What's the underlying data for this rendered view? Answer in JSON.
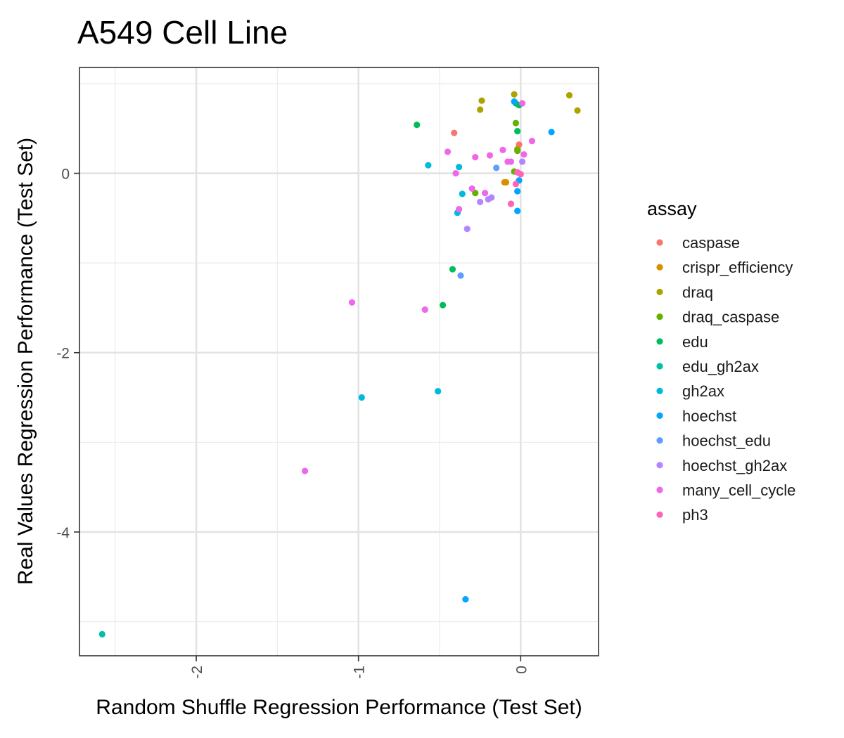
{
  "chart_data": {
    "type": "scatter",
    "title": "A549 Cell Line",
    "xlabel": "Random Shuffle Regression Performance (Test Set)",
    "ylabel": "Real Values Regression Performance (Test Set)",
    "xlim": [
      -2.72,
      0.48
    ],
    "ylim": [
      -5.38,
      1.18
    ],
    "x_ticks": [
      -2,
      -1,
      0
    ],
    "y_ticks": [
      0,
      -2,
      -4
    ],
    "grid": true,
    "legend": {
      "title": "assay",
      "position": "right"
    },
    "series": [
      {
        "name": "caspase",
        "color": "#F8766D",
        "points": [
          [
            -0.41,
            0.45
          ],
          [
            -0.01,
            0.32
          ]
        ]
      },
      {
        "name": "crispr_efficiency",
        "color": "#DB8E00",
        "points": [
          [
            -0.1,
            -0.1
          ],
          [
            -0.09,
            -0.1
          ]
        ]
      },
      {
        "name": "draq",
        "color": "#AEA200",
        "points": [
          [
            -0.04,
            0.88
          ],
          [
            -0.24,
            0.81
          ],
          [
            -0.25,
            0.71
          ],
          [
            0.3,
            0.87
          ],
          [
            0.35,
            0.7
          ],
          [
            -0.02,
            0.27
          ]
        ]
      },
      {
        "name": "draq_caspase",
        "color": "#64B200",
        "points": [
          [
            -0.03,
            0.56
          ],
          [
            -0.28,
            -0.22
          ],
          [
            -0.04,
            0.02
          ],
          [
            -0.02,
            0.25
          ]
        ]
      },
      {
        "name": "edu",
        "color": "#00BD5C",
        "points": [
          [
            -0.64,
            0.54
          ],
          [
            -0.02,
            0.47
          ],
          [
            -0.01,
            0.76
          ],
          [
            -0.03,
            0.78
          ],
          [
            -0.42,
            -1.07
          ],
          [
            -0.48,
            -1.47
          ]
        ]
      },
      {
        "name": "edu_gh2ax",
        "color": "#00C1A7",
        "points": [
          [
            -2.58,
            -5.14
          ]
        ]
      },
      {
        "name": "gh2ax",
        "color": "#00BADE",
        "points": [
          [
            -0.57,
            0.09
          ],
          [
            -0.38,
            0.07
          ],
          [
            -0.36,
            -0.23
          ],
          [
            -0.39,
            -0.44
          ],
          [
            -0.98,
            -2.5
          ],
          [
            -0.51,
            -2.43
          ]
        ]
      },
      {
        "name": "hoechst",
        "color": "#00A6FF",
        "points": [
          [
            -0.04,
            0.8
          ],
          [
            0.19,
            0.46
          ],
          [
            -0.02,
            -0.2
          ],
          [
            -0.02,
            -0.42
          ],
          [
            -0.34,
            -4.75
          ],
          [
            -0.01,
            -0.08
          ]
        ]
      },
      {
        "name": "hoechst_edu",
        "color": "#619CFF",
        "points": [
          [
            -0.15,
            0.06
          ],
          [
            -0.37,
            -1.14
          ]
        ]
      },
      {
        "name": "hoechst_gh2ax",
        "color": "#B385FF",
        "points": [
          [
            -0.18,
            -0.27
          ],
          [
            -0.25,
            -0.32
          ],
          [
            -0.33,
            -0.62
          ],
          [
            0.01,
            0.13
          ],
          [
            -0.2,
            -0.29
          ]
        ]
      },
      {
        "name": "many_cell_cycle",
        "color": "#EF67EB",
        "points": [
          [
            -0.45,
            0.24
          ],
          [
            -0.4,
            0.0
          ],
          [
            -0.28,
            0.18
          ],
          [
            -0.19,
            0.2
          ],
          [
            -0.11,
            0.26
          ],
          [
            -0.08,
            0.13
          ],
          [
            -0.06,
            0.13
          ],
          [
            0.02,
            0.21
          ],
          [
            0.07,
            0.36
          ],
          [
            0.01,
            0.78
          ],
          [
            -0.3,
            -0.17
          ],
          [
            -0.22,
            -0.22
          ],
          [
            -0.38,
            -0.4
          ],
          [
            -1.04,
            -1.44
          ],
          [
            -0.59,
            -1.52
          ],
          [
            -1.33,
            -3.32
          ]
        ]
      },
      {
        "name": "ph3",
        "color": "#FF63B6",
        "points": [
          [
            -0.06,
            -0.34
          ],
          [
            -0.03,
            -0.12
          ],
          [
            0.0,
            -0.01
          ],
          [
            -0.02,
            0.01
          ]
        ]
      }
    ]
  }
}
